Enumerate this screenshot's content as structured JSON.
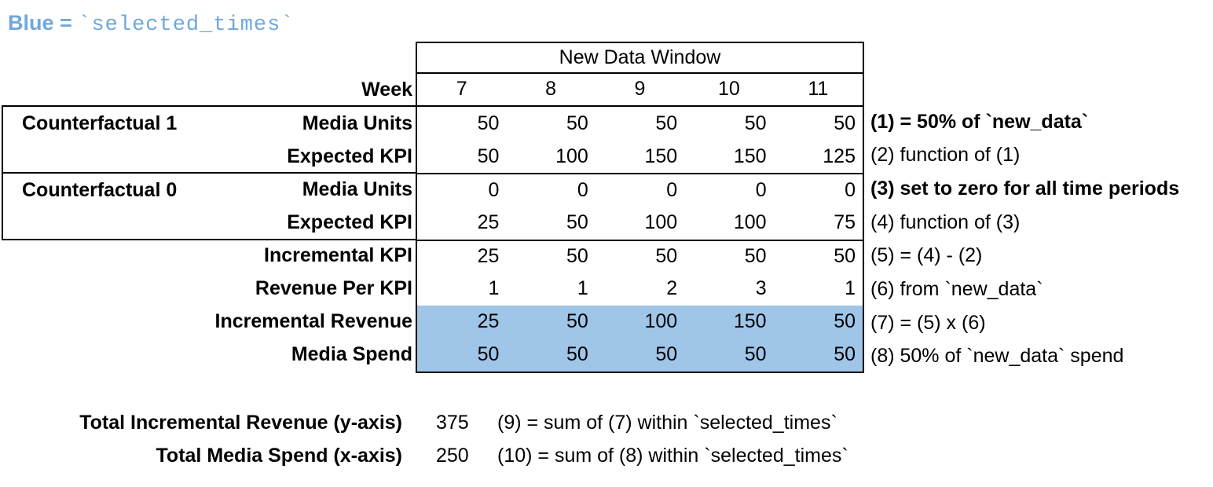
{
  "legend": {
    "prefix": "Blue = ",
    "code": "`selected_times`"
  },
  "colors": {
    "highlight": "#9fc5e8",
    "legend_text": "#6fa8dc",
    "border": "#000000",
    "background": "#ffffff"
  },
  "table": {
    "window_header": "New Data Window",
    "week_label": "Week",
    "weeks": [
      "7",
      "8",
      "9",
      "10",
      "11"
    ],
    "rows": [
      {
        "group": "Counterfactual 1",
        "label": "Media Units",
        "values": [
          "50",
          "50",
          "50",
          "50",
          "50"
        ],
        "note": "(1) = 50% of `new_data`",
        "note_bold": true,
        "highlight": false
      },
      {
        "group": "",
        "label": "Expected KPI",
        "values": [
          "50",
          "100",
          "150",
          "150",
          "125"
        ],
        "note": "(2) function of (1)",
        "note_bold": false,
        "highlight": false
      },
      {
        "group": "Counterfactual 0",
        "label": "Media Units",
        "values": [
          "0",
          "0",
          "0",
          "0",
          "0"
        ],
        "note": "(3) set to zero for all time periods",
        "note_bold": true,
        "highlight": false
      },
      {
        "group": "",
        "label": "Expected KPI",
        "values": [
          "25",
          "50",
          "100",
          "100",
          "75"
        ],
        "note": "(4) function of (3)",
        "note_bold": false,
        "highlight": false
      },
      {
        "group": "",
        "label": "Incremental KPI",
        "values": [
          "25",
          "50",
          "50",
          "50",
          "50"
        ],
        "note": "(5) = (4) - (2)",
        "note_bold": false,
        "highlight": false
      },
      {
        "group": "",
        "label": "Revenue Per KPI",
        "values": [
          "1",
          "1",
          "2",
          "3",
          "1"
        ],
        "note": "(6) from `new_data`",
        "note_bold": false,
        "highlight": false
      },
      {
        "group": "",
        "label": "Incremental Revenue",
        "values": [
          "25",
          "50",
          "100",
          "150",
          "50"
        ],
        "note": "(7) = (5) x (6)",
        "note_bold": false,
        "highlight": true
      },
      {
        "group": "",
        "label": "Media Spend",
        "values": [
          "50",
          "50",
          "50",
          "50",
          "50"
        ],
        "note": "(8) 50% of `new_data` spend",
        "note_bold": false,
        "highlight": true
      }
    ]
  },
  "totals": [
    {
      "label": "Total Incremental Revenue (y-axis)",
      "value": "375",
      "note": "(9) = sum of (7) within `selected_times`"
    },
    {
      "label": "Total Media Spend (x-axis)",
      "value": "250",
      "note": "(10) = sum of (8) within `selected_times`"
    }
  ]
}
